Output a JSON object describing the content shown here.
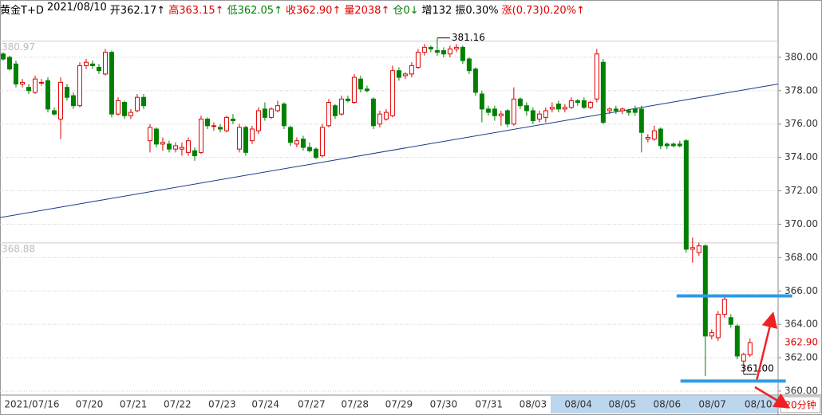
{
  "chart_data": {
    "type": "candlestick",
    "header": [
      {
        "text": "黄金T+D",
        "color": "#000000"
      },
      {
        "text": "2021/08/10",
        "color": "#000000"
      },
      {
        "text": "开362.17↑",
        "color": "#000000"
      },
      {
        "text": "高363.15↑",
        "color": "#e00000"
      },
      {
        "text": "低362.05↑",
        "color": "#008000"
      },
      {
        "text": "收362.90↑",
        "color": "#e00000"
      },
      {
        "text": "量2038↑",
        "color": "#e00000"
      },
      {
        "text": "仓0↓",
        "color": "#008000"
      },
      {
        "text": "增132",
        "color": "#000000"
      },
      {
        "text": "振0.30%",
        "color": "#000000"
      },
      {
        "text": "涨(0.73)0.20%↑",
        "color": "#e00000"
      }
    ],
    "period": "20分钟",
    "up_color": "#e00000",
    "down_color": "#008000",
    "open": [
      380.2,
      380.0,
      379.6,
      378.4,
      378.2,
      377.9,
      378.5,
      378.6,
      376.8,
      376.3,
      378.2,
      377.7,
      377.1,
      379.5,
      379.6,
      379.4,
      379.0,
      380.3,
      376.6,
      377.3,
      376.5,
      376.8,
      377.6,
      375.0,
      375.7,
      374.8,
      374.8,
      374.5,
      374.5,
      374.3,
      374.4,
      374.3,
      376.3,
      375.9,
      375.8,
      375.6,
      376.3,
      374.5,
      375.8,
      375.0,
      375.6,
      376.9,
      376.4,
      376.8,
      377.2,
      375.8,
      374.8,
      375.1,
      374.6,
      374.5,
      374.1,
      375.9,
      377.1,
      376.6,
      377.5,
      377.3,
      378.7,
      378.1,
      377.5,
      376.0,
      376.3,
      376.5,
      379.2,
      378.9,
      379.0,
      379.4,
      380.3,
      380.6,
      380.4,
      380.4,
      380.2,
      380.5,
      380.6,
      379.9,
      379.3,
      377.8,
      376.9,
      376.9,
      376.5,
      376.8,
      376.0,
      377.5,
      377.1,
      376.8,
      376.3,
      376.4,
      376.9,
      377.2,
      376.9,
      377.0,
      377.4,
      377.4,
      377.0,
      377.5,
      379.7,
      376.8,
      376.9,
      376.8,
      376.8,
      376.9,
      376.9,
      375.1,
      375.1,
      375.7,
      374.8,
      374.8,
      374.8,
      375.0,
      368.5,
      368.3,
      368.7,
      363.3,
      363.2,
      364.6,
      364.4,
      363.9,
      361.8,
      362.17
    ],
    "high": [
      380.3,
      380.1,
      379.8,
      378.7,
      378.4,
      378.9,
      378.7,
      378.8,
      377.0,
      378.8,
      378.4,
      377.9,
      379.7,
      379.9,
      379.8,
      379.6,
      380.5,
      380.4,
      377.6,
      377.4,
      376.9,
      377.8,
      377.8,
      376.0,
      375.8,
      375.2,
      375.0,
      374.9,
      374.9,
      375.2,
      374.6,
      376.5,
      376.4,
      376.1,
      376.0,
      376.5,
      376.6,
      376.0,
      375.9,
      375.9,
      377.0,
      377.3,
      377.0,
      377.4,
      377.3,
      375.9,
      375.2,
      375.3,
      374.9,
      374.6,
      376.0,
      377.5,
      377.2,
      377.7,
      377.7,
      379.0,
      378.9,
      378.3,
      377.6,
      376.8,
      376.9,
      379.5,
      379.4,
      379.1,
      379.7,
      380.5,
      380.8,
      380.7,
      381.16,
      380.6,
      380.7,
      380.8,
      380.7,
      380.0,
      379.4,
      378.0,
      377.1,
      377.1,
      376.8,
      376.9,
      378.2,
      377.6,
      377.3,
      377.0,
      376.8,
      377.0,
      377.3,
      377.4,
      377.2,
      377.6,
      377.5,
      377.6,
      377.4,
      380.5,
      379.9,
      377.0,
      377.1,
      377.0,
      376.9,
      377.1,
      377.1,
      375.4,
      375.9,
      375.8,
      374.9,
      374.9,
      375.0,
      375.1,
      369.2,
      368.9,
      368.8,
      363.7,
      364.8,
      365.8,
      364.6,
      364.0,
      362.3,
      363.15
    ],
    "low": [
      379.8,
      379.2,
      378.2,
      378.2,
      377.8,
      377.8,
      378.3,
      376.7,
      376.5,
      375.1,
      377.4,
      376.9,
      377.0,
      379.3,
      379.3,
      379.0,
      378.9,
      376.4,
      376.5,
      376.3,
      376.3,
      376.7,
      376.9,
      374.3,
      374.6,
      374.4,
      374.3,
      374.3,
      374.1,
      374.1,
      373.8,
      374.2,
      375.7,
      375.6,
      375.5,
      375.5,
      376.0,
      374.3,
      374.1,
      374.8,
      375.4,
      376.2,
      376.3,
      376.7,
      375.7,
      374.7,
      374.6,
      374.4,
      374.3,
      373.9,
      374.0,
      375.8,
      376.3,
      376.5,
      377.3,
      377.2,
      377.9,
      377.9,
      375.7,
      375.8,
      376.2,
      376.4,
      378.6,
      378.7,
      378.8,
      379.3,
      380.1,
      380.3,
      380.1,
      380.0,
      380.0,
      380.3,
      379.6,
      379.0,
      377.7,
      376.1,
      376.5,
      376.2,
      375.9,
      375.8,
      375.9,
      376.9,
      376.5,
      376.0,
      376.1,
      376.1,
      376.7,
      376.7,
      376.7,
      376.9,
      377.1,
      376.9,
      376.9,
      377.3,
      376.0,
      376.6,
      376.6,
      376.6,
      376.5,
      376.5,
      374.3,
      374.9,
      375.0,
      374.5,
      374.5,
      374.6,
      374.6,
      368.3,
      367.7,
      368.1,
      360.9,
      363.1,
      363.0,
      364.4,
      363.8,
      361.9,
      361.0,
      362.05
    ],
    "close": [
      379.9,
      379.3,
      378.4,
      378.5,
      378.0,
      378.7,
      378.5,
      376.9,
      376.6,
      378.5,
      377.6,
      377.1,
      379.5,
      379.7,
      379.5,
      379.2,
      380.3,
      376.6,
      377.4,
      376.5,
      376.7,
      377.6,
      377.1,
      375.8,
      374.8,
      374.9,
      374.5,
      374.7,
      374.6,
      375.0,
      374.1,
      376.3,
      375.9,
      375.9,
      375.7,
      376.4,
      376.2,
      375.8,
      374.3,
      375.7,
      376.8,
      376.4,
      376.9,
      377.1,
      375.9,
      374.9,
      375.0,
      374.6,
      374.4,
      374.0,
      375.8,
      377.3,
      376.5,
      377.5,
      377.4,
      378.8,
      378.1,
      378.0,
      375.9,
      376.6,
      376.7,
      379.2,
      378.8,
      379.0,
      379.5,
      380.3,
      380.6,
      380.5,
      380.3,
      380.2,
      380.5,
      380.6,
      379.8,
      379.2,
      377.9,
      376.9,
      376.7,
      376.5,
      376.6,
      376.0,
      377.5,
      377.1,
      376.8,
      376.2,
      376.6,
      376.8,
      377.0,
      376.9,
      377.0,
      377.4,
      377.3,
      377.0,
      377.3,
      380.2,
      376.1,
      376.9,
      376.8,
      376.9,
      376.7,
      376.7,
      375.5,
      375.2,
      375.6,
      374.7,
      374.7,
      374.7,
      374.7,
      368.5,
      368.6,
      368.7,
      363.3,
      363.5,
      364.6,
      365.5,
      364.0,
      362.1,
      362.2,
      362.9
    ],
    "xticks": [
      {
        "value": 4.5,
        "label": "2021/07/16"
      },
      {
        "value": 13.5,
        "label": "07/20"
      },
      {
        "value": 20.4,
        "label": "07/21"
      },
      {
        "value": 27.3,
        "label": "07/22"
      },
      {
        "value": 34.3,
        "label": "07/23"
      },
      {
        "value": 41.1,
        "label": "07/24"
      },
      {
        "value": 48.3,
        "label": "07/27"
      },
      {
        "value": 55.1,
        "label": "07/28"
      },
      {
        "value": 62,
        "label": "07/29"
      },
      {
        "value": 69,
        "label": "07/30"
      },
      {
        "value": 76.1,
        "label": "07/31"
      },
      {
        "value": 83,
        "label": "08/03"
      },
      {
        "value": 90.1,
        "label": "08/04"
      },
      {
        "value": 97,
        "label": "08/05"
      },
      {
        "value": 104,
        "label": "08/06"
      },
      {
        "value": 111.1,
        "label": "08/07"
      },
      {
        "value": 118.3,
        "label": "08/10"
      }
    ],
    "xlim": [
      -0.5,
      121.4
    ],
    "ylim": [
      359.76,
      382.24
    ],
    "yticks": [
      {
        "value": 360,
        "label": "360.00"
      },
      {
        "value": 362,
        "label": "362.00"
      },
      {
        "value": 364,
        "label": "364.00"
      },
      {
        "value": 366,
        "label": "366.00"
      },
      {
        "value": 368,
        "label": "368.00"
      },
      {
        "value": 370,
        "label": "370.00"
      },
      {
        "value": 372,
        "label": "372.00"
      },
      {
        "value": 374,
        "label": "374.00"
      },
      {
        "value": 376,
        "label": "376.00"
      },
      {
        "value": 378,
        "label": "378.00"
      },
      {
        "value": 380,
        "label": "380.00"
      }
    ],
    "ref_levels": [
      380.97,
      368.88
    ],
    "annotations": [
      {
        "index": 68,
        "value": 381.16,
        "label": "381.16"
      },
      {
        "index": 116,
        "value": 361,
        "label": "361.00"
      }
    ],
    "last_price": {
      "value": 362.9,
      "label": "362.90"
    },
    "trendline": {
      "x": [
        -0.5,
        121.4
      ],
      "y": [
        370.4,
        378.4
      ],
      "color": "#1a3a8a"
    },
    "levels": [
      {
        "value": 365.7,
        "from": 105.5,
        "to": 123.6,
        "color": "#2e9be6"
      },
      {
        "value": 360.6,
        "from": 106.1,
        "to": 122.6,
        "color": "#2e9be6"
      }
    ]
  }
}
